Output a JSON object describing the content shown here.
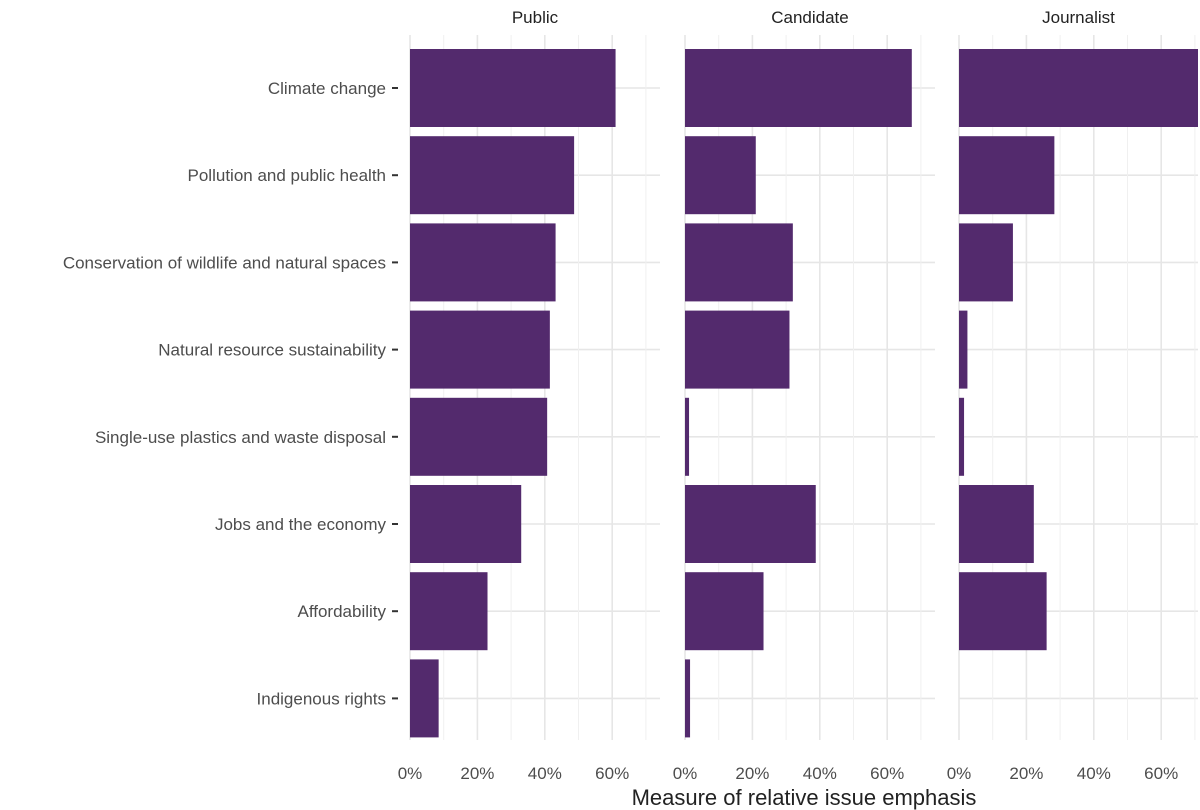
{
  "chart_data": {
    "type": "bar",
    "orientation": "horizontal",
    "facets": [
      "Public",
      "Candidate",
      "Journalist"
    ],
    "categories": [
      "Climate change",
      "Pollution and public health",
      "Conservation of wildlife and natural spaces",
      "Natural resource sustainability",
      "Single-use plastics and waste disposal",
      "Jobs and the economy",
      "Affordability",
      "Indigenous rights"
    ],
    "series": [
      {
        "name": "Public",
        "values": [
          61,
          48.7,
          43.2,
          41.5,
          40.7,
          33,
          23,
          8.5
        ]
      },
      {
        "name": "Candidate",
        "values": [
          67.3,
          21,
          32,
          31,
          1.2,
          38.8,
          23.3,
          1.5
        ]
      },
      {
        "name": "Journalist",
        "values": [
          71,
          28.3,
          16,
          2.5,
          1.5,
          22.2,
          26,
          0
        ]
      }
    ],
    "xlabel": "Measure of relative issue emphasis",
    "ylabel": "",
    "xlim": [
      0,
      71
    ],
    "x_ticks": [
      "0%",
      "20%",
      "40%",
      "60%"
    ],
    "x_tick_values": [
      0,
      20,
      40,
      60
    ],
    "grid": true,
    "legend": "none",
    "bar_color": "#532a6d"
  }
}
